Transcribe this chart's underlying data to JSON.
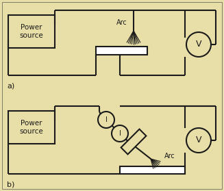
{
  "bg_color": "#e8dfa8",
  "box_color": "#e8dfa8",
  "line_color": "#1a1a1a",
  "line_width": 1.5,
  "fig_width": 3.27,
  "fig_height": 2.79,
  "dpi": 100,
  "label_a": "a)",
  "label_b": "b)",
  "text_arc": "Arc",
  "text_v": "V",
  "text_power": "Power\nsource",
  "text_i": "I"
}
